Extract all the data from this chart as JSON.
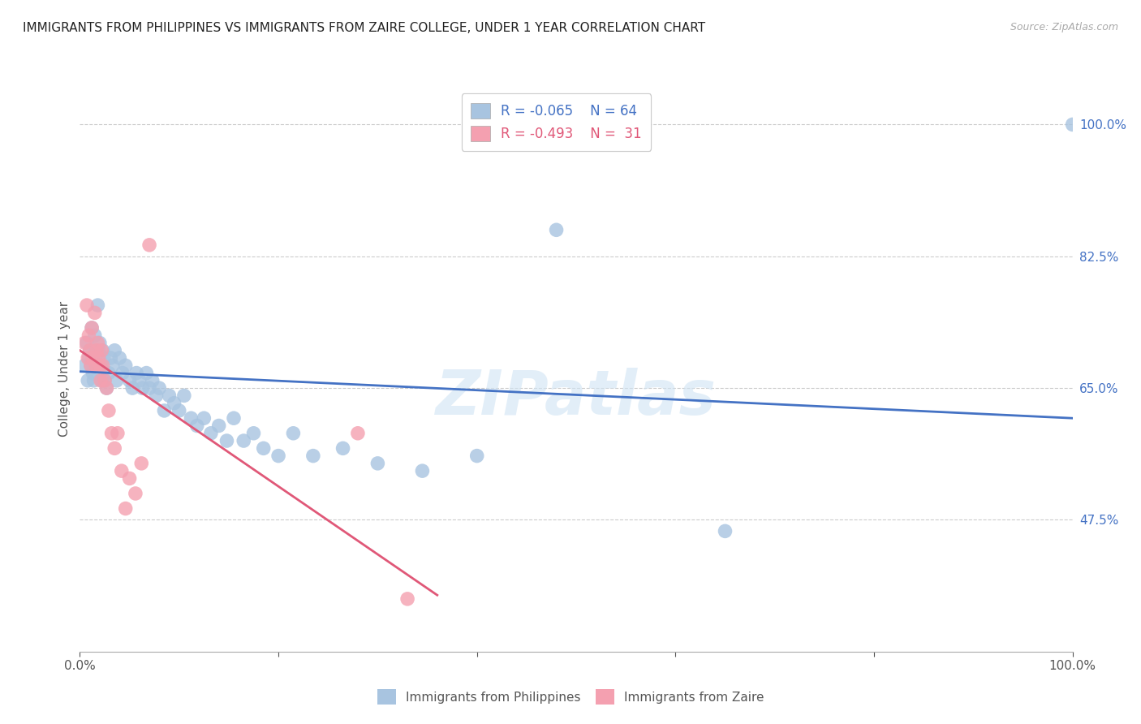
{
  "title": "IMMIGRANTS FROM PHILIPPINES VS IMMIGRANTS FROM ZAIRE COLLEGE, UNDER 1 YEAR CORRELATION CHART",
  "source": "Source: ZipAtlas.com",
  "ylabel": "College, Under 1 year",
  "xlim": [
    0.0,
    1.0
  ],
  "ylim": [
    0.3,
    1.05
  ],
  "xtick_positions": [
    0.0,
    0.2,
    0.4,
    0.6,
    0.8,
    1.0
  ],
  "xtick_labels": [
    "0.0%",
    "",
    "",
    "",
    "",
    "100.0%"
  ],
  "ytick_labels_right": [
    "100.0%",
    "82.5%",
    "65.0%",
    "47.5%"
  ],
  "ytick_positions_right": [
    1.0,
    0.825,
    0.65,
    0.475
  ],
  "watermark": "ZIPatlas",
  "philippines_color": "#a8c4e0",
  "zaire_color": "#f4a0b0",
  "philippines_line_color": "#4472c4",
  "zaire_line_color": "#e05878",
  "legend_r_philippines": "R = -0.065",
  "legend_n_philippines": "N = 64",
  "legend_r_zaire": "R = -0.493",
  "legend_n_zaire": "N =  31",
  "philippines_scatter_x": [
    0.005,
    0.007,
    0.008,
    0.009,
    0.01,
    0.011,
    0.012,
    0.013,
    0.014,
    0.015,
    0.016,
    0.017,
    0.018,
    0.019,
    0.02,
    0.021,
    0.022,
    0.023,
    0.024,
    0.025,
    0.027,
    0.029,
    0.031,
    0.033,
    0.035,
    0.037,
    0.04,
    0.043,
    0.046,
    0.05,
    0.053,
    0.057,
    0.06,
    0.063,
    0.067,
    0.07,
    0.073,
    0.077,
    0.08,
    0.085,
    0.09,
    0.095,
    0.1,
    0.105,
    0.112,
    0.118,
    0.125,
    0.132,
    0.14,
    0.148,
    0.155,
    0.165,
    0.175,
    0.185,
    0.2,
    0.215,
    0.235,
    0.265,
    0.3,
    0.345,
    0.4,
    0.48,
    0.65,
    1.0
  ],
  "philippines_scatter_y": [
    0.68,
    0.71,
    0.66,
    0.69,
    0.7,
    0.68,
    0.73,
    0.67,
    0.66,
    0.72,
    0.7,
    0.68,
    0.76,
    0.7,
    0.71,
    0.68,
    0.66,
    0.7,
    0.69,
    0.66,
    0.65,
    0.67,
    0.69,
    0.68,
    0.7,
    0.66,
    0.69,
    0.67,
    0.68,
    0.66,
    0.65,
    0.67,
    0.66,
    0.65,
    0.67,
    0.65,
    0.66,
    0.64,
    0.65,
    0.62,
    0.64,
    0.63,
    0.62,
    0.64,
    0.61,
    0.6,
    0.61,
    0.59,
    0.6,
    0.58,
    0.61,
    0.58,
    0.59,
    0.57,
    0.56,
    0.59,
    0.56,
    0.57,
    0.55,
    0.54,
    0.56,
    0.86,
    0.46,
    1.0
  ],
  "zaire_scatter_x": [
    0.005,
    0.007,
    0.008,
    0.009,
    0.01,
    0.011,
    0.012,
    0.013,
    0.015,
    0.016,
    0.017,
    0.018,
    0.019,
    0.02,
    0.021,
    0.022,
    0.023,
    0.025,
    0.027,
    0.029,
    0.032,
    0.035,
    0.038,
    0.042,
    0.046,
    0.05,
    0.056,
    0.062,
    0.07,
    0.28,
    0.33
  ],
  "zaire_scatter_y": [
    0.71,
    0.76,
    0.69,
    0.72,
    0.7,
    0.68,
    0.73,
    0.69,
    0.75,
    0.68,
    0.7,
    0.71,
    0.69,
    0.68,
    0.66,
    0.7,
    0.68,
    0.66,
    0.65,
    0.62,
    0.59,
    0.57,
    0.59,
    0.54,
    0.49,
    0.53,
    0.51,
    0.55,
    0.84,
    0.59,
    0.37
  ],
  "philippines_line_x": [
    0.0,
    1.0
  ],
  "philippines_line_y": [
    0.672,
    0.61
  ],
  "zaire_line_x": [
    0.0,
    0.36
  ],
  "zaire_line_y": [
    0.7,
    0.375
  ],
  "background_color": "#ffffff",
  "grid_color": "#cccccc"
}
